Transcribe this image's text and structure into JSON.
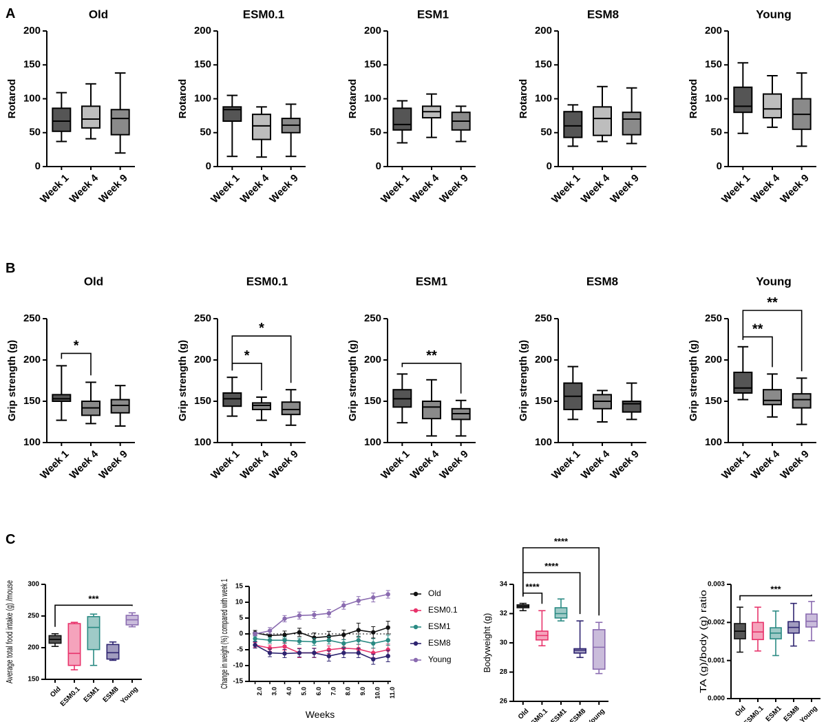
{
  "panels": [
    "A",
    "B",
    "C"
  ],
  "colors": {
    "dark": "#555555",
    "mid": "#8a8a8a",
    "light": "#bdbdbd",
    "old": "#111111",
    "esm01": "#e8336b",
    "esm1": "#2a8a83",
    "esm8": "#2e2470",
    "young": "#8a6bb0"
  },
  "chart_data": [
    {
      "id": "A1",
      "panel": "A",
      "type": "box",
      "title": "Old",
      "ylabel": "Rotarod",
      "ylim": [
        0,
        200
      ],
      "yticks": [
        0,
        50,
        100,
        150,
        200
      ],
      "categories": [
        "Week 1",
        "Week 4",
        "Week 9"
      ],
      "fills": [
        "dark",
        "light",
        "mid"
      ],
      "boxes": [
        {
          "min": 37,
          "q1": 52,
          "median": 67,
          "q3": 86,
          "max": 109
        },
        {
          "min": 41,
          "q1": 57,
          "median": 70,
          "q3": 89,
          "max": 122
        },
        {
          "min": 20,
          "q1": 47,
          "median": 71,
          "q3": 84,
          "max": 138
        }
      ],
      "brackets": []
    },
    {
      "id": "A2",
      "panel": "A",
      "type": "box",
      "title": "ESM0.1",
      "ylabel": "Rotarod",
      "ylim": [
        0,
        200
      ],
      "yticks": [
        0,
        50,
        100,
        150,
        200
      ],
      "categories": [
        "Week 1",
        "Week 4",
        "Week 9"
      ],
      "fills": [
        "dark",
        "light",
        "mid"
      ],
      "boxes": [
        {
          "min": 15,
          "q1": 67,
          "median": 84,
          "q3": 88,
          "max": 105
        },
        {
          "min": 14,
          "q1": 40,
          "median": 60,
          "q3": 77,
          "max": 88
        },
        {
          "min": 15,
          "q1": 50,
          "median": 61,
          "q3": 71,
          "max": 92
        }
      ],
      "brackets": []
    },
    {
      "id": "A3",
      "panel": "A",
      "type": "box",
      "title": "ESM1",
      "ylabel": "Rotarod",
      "ylim": [
        0,
        200
      ],
      "yticks": [
        0,
        50,
        100,
        150,
        200
      ],
      "categories": [
        "Week 1",
        "Week 4",
        "Week 9"
      ],
      "fills": [
        "dark",
        "light",
        "mid"
      ],
      "boxes": [
        {
          "min": 35,
          "q1": 54,
          "median": 62,
          "q3": 86,
          "max": 97
        },
        {
          "min": 43,
          "q1": 72,
          "median": 81,
          "q3": 89,
          "max": 107
        },
        {
          "min": 37,
          "q1": 54,
          "median": 67,
          "q3": 80,
          "max": 89
        }
      ],
      "brackets": []
    },
    {
      "id": "A4",
      "panel": "A",
      "type": "box",
      "title": "ESM8",
      "ylabel": "Rotarod",
      "ylim": [
        0,
        200
      ],
      "yticks": [
        0,
        50,
        100,
        150,
        200
      ],
      "categories": [
        "Week 1",
        "Week 4",
        "Week 9"
      ],
      "fills": [
        "dark",
        "light",
        "mid"
      ],
      "boxes": [
        {
          "min": 30,
          "q1": 43,
          "median": 60,
          "q3": 81,
          "max": 91
        },
        {
          "min": 37,
          "q1": 46,
          "median": 71,
          "q3": 88,
          "max": 118
        },
        {
          "min": 34,
          "q1": 47,
          "median": 70,
          "q3": 80,
          "max": 116
        }
      ],
      "brackets": []
    },
    {
      "id": "A5",
      "panel": "A",
      "type": "box",
      "title": "Young",
      "ylabel": "Rotarod",
      "ylim": [
        0,
        200
      ],
      "yticks": [
        0,
        50,
        100,
        150,
        200
      ],
      "categories": [
        "Week 1",
        "Week 4",
        "Week 9"
      ],
      "fills": [
        "dark",
        "light",
        "mid"
      ],
      "boxes": [
        {
          "min": 49,
          "q1": 80,
          "median": 89,
          "q3": 117,
          "max": 153
        },
        {
          "min": 58,
          "q1": 72,
          "median": 85,
          "q3": 107,
          "max": 134
        },
        {
          "min": 30,
          "q1": 55,
          "median": 77,
          "q3": 100,
          "max": 138
        }
      ],
      "brackets": []
    },
    {
      "id": "B1",
      "panel": "B",
      "type": "box",
      "title": "Old",
      "ylabel": "Grip strength (g)",
      "ylim": [
        100,
        250
      ],
      "yticks": [
        100,
        150,
        200,
        250
      ],
      "categories": [
        "Week 1",
        "Week 4",
        "Week 9"
      ],
      "fills": [
        "dark",
        "mid",
        "mid"
      ],
      "boxes": [
        {
          "min": 127,
          "q1": 150,
          "median": 153,
          "q3": 158,
          "max": 193
        },
        {
          "min": 123,
          "q1": 133,
          "median": 142,
          "q3": 150,
          "max": 173
        },
        {
          "min": 120,
          "q1": 136,
          "median": 145,
          "q3": 152,
          "max": 169
        }
      ],
      "brackets": [
        {
          "from": 0,
          "to": 1,
          "y": 208,
          "label": "*"
        }
      ]
    },
    {
      "id": "B2",
      "panel": "B",
      "type": "box",
      "title": "ESM0.1",
      "ylabel": "Grip strength (g)",
      "ylim": [
        100,
        250
      ],
      "yticks": [
        100,
        150,
        200,
        250
      ],
      "categories": [
        "Week 1",
        "Week 4",
        "Week 9"
      ],
      "fills": [
        "dark",
        "mid",
        "mid"
      ],
      "boxes": [
        {
          "min": 132,
          "q1": 144,
          "median": 153,
          "q3": 160,
          "max": 179
        },
        {
          "min": 127,
          "q1": 140,
          "median": 145,
          "q3": 148,
          "max": 155
        },
        {
          "min": 121,
          "q1": 134,
          "median": 140,
          "q3": 149,
          "max": 164
        }
      ],
      "brackets": [
        {
          "from": 0,
          "to": 1,
          "y": 196,
          "label": "*"
        },
        {
          "from": 0,
          "to": 2,
          "y": 229,
          "label": "*"
        }
      ]
    },
    {
      "id": "B3",
      "panel": "B",
      "type": "box",
      "title": "ESM1",
      "ylabel": "Grip strength (g)",
      "ylim": [
        100,
        250
      ],
      "yticks": [
        100,
        150,
        200,
        250
      ],
      "categories": [
        "Week 1",
        "Week 4",
        "Week 9"
      ],
      "fills": [
        "dark",
        "mid",
        "mid"
      ],
      "boxes": [
        {
          "min": 124,
          "q1": 143,
          "median": 153,
          "q3": 164,
          "max": 183
        },
        {
          "min": 108,
          "q1": 129,
          "median": 143,
          "q3": 150,
          "max": 176
        },
        {
          "min": 108,
          "q1": 128,
          "median": 135,
          "q3": 141,
          "max": 151
        }
      ],
      "brackets": [
        {
          "from": 0,
          "to": 2,
          "y": 196,
          "label": "**"
        }
      ]
    },
    {
      "id": "B4",
      "panel": "B",
      "type": "box",
      "title": "ESM8",
      "ylabel": "Grip strength (g)",
      "ylim": [
        100,
        250
      ],
      "yticks": [
        100,
        150,
        200,
        250
      ],
      "categories": [
        "Week 1",
        "Week 4",
        "Week 9"
      ],
      "fills": [
        "dark",
        "mid",
        "dark"
      ],
      "boxes": [
        {
          "min": 128,
          "q1": 140,
          "median": 156,
          "q3": 172,
          "max": 192
        },
        {
          "min": 125,
          "q1": 141,
          "median": 150,
          "q3": 158,
          "max": 163
        },
        {
          "min": 128,
          "q1": 137,
          "median": 147,
          "q3": 150,
          "max": 172
        }
      ],
      "brackets": []
    },
    {
      "id": "B5",
      "panel": "B",
      "type": "box",
      "title": "Young",
      "ylabel": "Grip strength (g)",
      "ylim": [
        100,
        250
      ],
      "yticks": [
        100,
        150,
        200,
        250
      ],
      "categories": [
        "Week 1",
        "Week 4",
        "Week 9"
      ],
      "fills": [
        "dark",
        "mid",
        "mid"
      ],
      "boxes": [
        {
          "min": 152,
          "q1": 160,
          "median": 166,
          "q3": 185,
          "max": 216
        },
        {
          "min": 131,
          "q1": 146,
          "median": 151,
          "q3": 164,
          "max": 183
        },
        {
          "min": 122,
          "q1": 142,
          "median": 152,
          "q3": 159,
          "max": 178
        }
      ],
      "brackets": [
        {
          "from": 0,
          "to": 1,
          "y": 228,
          "label": "**"
        },
        {
          "from": 0,
          "to": 2,
          "y": 260,
          "label": "**"
        }
      ]
    },
    {
      "id": "C1",
      "panel": "C",
      "type": "box",
      "title": "",
      "ylabel": "Average total food intake (g) /mouse",
      "ylim": [
        150,
        300
      ],
      "yticks": [
        150,
        200,
        250,
        300
      ],
      "categories": [
        "Old",
        "ESM0.1",
        "ESM1",
        "ESM8",
        "Young"
      ],
      "fills": [
        "old",
        "esm01",
        "esm1",
        "esm8",
        "young"
      ],
      "boxes": [
        {
          "min": 202,
          "q1": 207,
          "median": 213,
          "q3": 219,
          "max": 222
        },
        {
          "min": 165,
          "q1": 172,
          "median": 191,
          "q3": 238,
          "max": 240
        },
        {
          "min": 172,
          "q1": 197,
          "median": 232,
          "q3": 249,
          "max": 253
        },
        {
          "min": 180,
          "q1": 182,
          "median": 192,
          "q3": 205,
          "max": 209
        },
        {
          "min": 233,
          "q1": 236,
          "median": 244,
          "q3": 251,
          "max": 255
        }
      ],
      "brackets": [
        {
          "from": 0,
          "to": 4,
          "y": 267,
          "label": "***"
        }
      ]
    },
    {
      "id": "C2",
      "panel": "C",
      "type": "line",
      "title": "",
      "ylabel": "Change in weight (%) compared with week 1",
      "xlabel": "Weeks",
      "ylim": [
        -15,
        15
      ],
      "yticks": [
        -15,
        -10,
        -5,
        0,
        5,
        10,
        15
      ],
      "x": [
        2.0,
        3.0,
        4.0,
        5.0,
        6.0,
        7.0,
        8.0,
        9.0,
        10.0,
        11.0
      ],
      "xticklabels": [
        "2.0",
        "3.0",
        "4.0",
        "5.0",
        "6.0",
        "7.0",
        "8.0",
        "9.0",
        "10.0",
        "11.0"
      ],
      "series": [
        {
          "name": "Old",
          "color": "old",
          "values": [
            0.3,
            -0.5,
            -0.3,
            0.5,
            -1.2,
            -0.8,
            -0.3,
            1.2,
            0.5,
            2.0
          ],
          "err": [
            0.8,
            1.3,
            1.2,
            1.3,
            1.5,
            1.6,
            1.5,
            2.2,
            1.8,
            2.0
          ]
        },
        {
          "name": "ESM0.1",
          "color": "esm01",
          "values": [
            -3.5,
            -4.5,
            -4.0,
            -6.0,
            -6.0,
            -5.0,
            -4.5,
            -4.8,
            -6.0,
            -5.0
          ],
          "err": [
            0.8,
            1.0,
            1.2,
            1.5,
            1.5,
            1.2,
            1.5,
            1.5,
            1.5,
            1.8
          ]
        },
        {
          "name": "ESM1",
          "color": "esm1",
          "values": [
            -1.5,
            -2.0,
            -2.0,
            -2.3,
            -2.5,
            -2.0,
            -3.0,
            -2.0,
            -3.0,
            -2.0
          ],
          "err": [
            0.8,
            0.9,
            1.0,
            1.0,
            1.1,
            1.2,
            1.2,
            1.3,
            1.5,
            1.6
          ]
        },
        {
          "name": "ESM8",
          "color": "esm8",
          "values": [
            -3.5,
            -6.0,
            -6.2,
            -6.0,
            -6.0,
            -7.0,
            -6.0,
            -6.0,
            -8.0,
            -7.0
          ],
          "err": [
            1.0,
            1.2,
            1.3,
            1.3,
            1.4,
            1.6,
            1.5,
            1.5,
            1.6,
            1.8
          ]
        },
        {
          "name": "Young",
          "color": "young",
          "values": [
            0.0,
            1.0,
            4.8,
            5.8,
            6.0,
            6.5,
            9.0,
            10.5,
            11.5,
            12.5
          ],
          "err": [
            0.6,
            1.0,
            1.0,
            1.1,
            1.1,
            1.2,
            1.2,
            1.3,
            1.4,
            1.2
          ]
        }
      ]
    },
    {
      "id": "C3",
      "panel": "C",
      "type": "box",
      "title": "",
      "ylabel": "Bodyweight (g)",
      "ylim": [
        26,
        34
      ],
      "yticks": [
        26,
        28,
        30,
        32,
        34
      ],
      "categories": [
        "Old",
        "ESM0.1",
        "ESM1",
        "ESM8",
        "Young"
      ],
      "fills": [
        "old",
        "esm01",
        "esm1",
        "esm8",
        "young"
      ],
      "boxes": [
        {
          "min": 32.2,
          "q1": 32.4,
          "median": 32.5,
          "q3": 32.6,
          "max": 32.7
        },
        {
          "min": 29.8,
          "q1": 30.2,
          "median": 30.5,
          "q3": 30.8,
          "max": 32.2
        },
        {
          "min": 31.5,
          "q1": 31.7,
          "median": 32.0,
          "q3": 32.4,
          "max": 33.0
        },
        {
          "min": 29.0,
          "q1": 29.3,
          "median": 29.5,
          "q3": 29.6,
          "max": 31.5
        },
        {
          "min": 27.9,
          "q1": 28.2,
          "median": 29.7,
          "q3": 30.9,
          "max": 31.4
        }
      ],
      "brackets": [
        {
          "from": 0,
          "to": 1,
          "y": 33.4,
          "label": "****"
        },
        {
          "from": 0,
          "to": 3,
          "y": 34.8,
          "label": "****"
        },
        {
          "from": 0,
          "to": 4,
          "y": 36.5,
          "label": "****"
        }
      ]
    },
    {
      "id": "C4",
      "panel": "C",
      "type": "box",
      "title": "",
      "ylabel": "TA (g)/body (g) ratio",
      "ylim": [
        0,
        0.003
      ],
      "yticks": [
        0,
        0.001,
        0.002,
        0.003
      ],
      "yticklabels": [
        "0.000",
        "0.001",
        "0.002",
        "0.003"
      ],
      "categories": [
        "Old",
        "ESM0.1",
        "ESM1",
        "ESM8",
        "Young"
      ],
      "fills": [
        "old",
        "esm01",
        "esm1",
        "esm8",
        "young"
      ],
      "boxes": [
        {
          "min": 0.00122,
          "q1": 0.00157,
          "median": 0.00177,
          "q3": 0.00197,
          "max": 0.0024
        },
        {
          "min": 0.00125,
          "q1": 0.00155,
          "median": 0.00175,
          "q3": 0.002,
          "max": 0.0024
        },
        {
          "min": 0.00113,
          "q1": 0.00157,
          "median": 0.00172,
          "q3": 0.00186,
          "max": 0.0023
        },
        {
          "min": 0.00138,
          "q1": 0.00172,
          "median": 0.00187,
          "q3": 0.00202,
          "max": 0.0025
        },
        {
          "min": 0.00152,
          "q1": 0.00188,
          "median": 0.00203,
          "q3": 0.00222,
          "max": 0.00255
        }
      ],
      "brackets": [
        {
          "from": 0,
          "to": 4,
          "y": 0.0027,
          "label": "***"
        }
      ]
    }
  ]
}
